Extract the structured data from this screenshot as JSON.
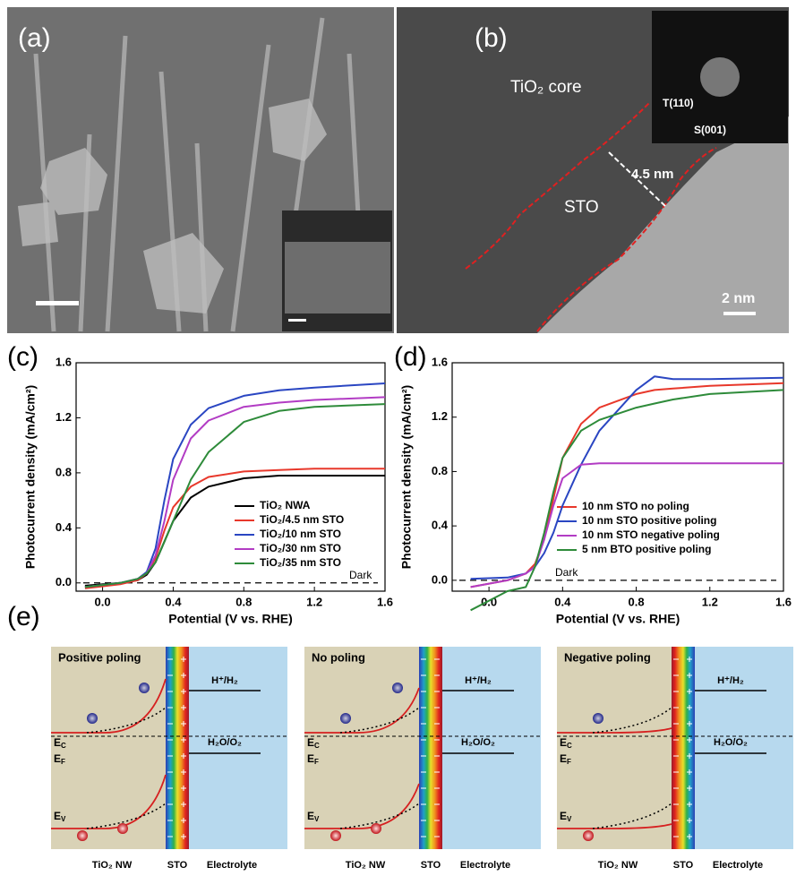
{
  "panels": {
    "a": {
      "label": "(a)"
    },
    "b": {
      "label": "(b)",
      "core_label": "TiO₂ core",
      "thickness_label": "4.5 nm",
      "shell_label": "STO",
      "fft_spot_1": "T(110)",
      "fft_spot_2": "S(001)",
      "scale_bar": "2 nm"
    },
    "e": {
      "label": "(e)",
      "diagrams": [
        {
          "title": "Positive poling",
          "ec": {
            "symbol": "E",
            "subscript": "C"
          },
          "ef": {
            "symbol": "E",
            "subscript": "F"
          },
          "ev": {
            "symbol": "E",
            "subscript": "V"
          },
          "h_level": "H⁺/H₂",
          "o_level": "H₂O/O₂",
          "left": "TiO₂ NW",
          "middle": "STO",
          "right": "Electrolyte"
        },
        {
          "title": "No poling",
          "ec": {
            "symbol": "E",
            "subscript": "C"
          },
          "ef": {
            "symbol": "E",
            "subscript": "F"
          },
          "ev": {
            "symbol": "E",
            "subscript": "V"
          },
          "h_level": "H⁺/H₂",
          "o_level": "H₂O/O₂",
          "left": "TiO₂ NW",
          "middle": "STO",
          "right": "Electrolyte"
        },
        {
          "title": "Negative poling",
          "ec": {
            "symbol": "E",
            "subscript": "C"
          },
          "ef": {
            "symbol": "E",
            "subscript": "F"
          },
          "ev": {
            "symbol": "E",
            "subscript": "V"
          },
          "h_level": "H⁺/H₂",
          "o_level": "H₂O/O₂",
          "left": "TiO₂ NW",
          "middle": "STO",
          "right": "Electrolyte"
        }
      ]
    }
  },
  "chart_data": [
    {
      "type": "line",
      "panel_label": "(c)",
      "x_label": "Potential (V vs. RHE)",
      "y_label": "Photocurrent density (mA/cm²)",
      "x": [
        -0.1,
        0.1,
        0.2,
        0.25,
        0.3,
        0.35,
        0.4,
        0.5,
        0.6,
        0.8,
        1.0,
        1.2,
        1.6
      ],
      "series": [
        {
          "name": "TiO₂ NWA",
          "color": "#000000",
          "values": [
            -0.02,
            0,
            0.02,
            0.06,
            0.15,
            0.3,
            0.45,
            0.62,
            0.7,
            0.76,
            0.78,
            0.78,
            0.78
          ]
        },
        {
          "name": "TiO₂/4.5 nm STO",
          "color": "#e8382b",
          "values": [
            -0.04,
            -0.01,
            0.02,
            0.07,
            0.18,
            0.38,
            0.55,
            0.7,
            0.77,
            0.81,
            0.82,
            0.83,
            0.83
          ]
        },
        {
          "name": "TiO₂/10 nm STO",
          "color": "#2a46c2",
          "values": [
            -0.03,
            0,
            0.03,
            0.08,
            0.25,
            0.6,
            0.9,
            1.15,
            1.27,
            1.36,
            1.4,
            1.42,
            1.45
          ]
        },
        {
          "name": "TiO₂/30 nm STO",
          "color": "#b23cc4",
          "values": [
            -0.03,
            0,
            0.03,
            0.07,
            0.2,
            0.45,
            0.75,
            1.05,
            1.18,
            1.28,
            1.31,
            1.33,
            1.35
          ]
        },
        {
          "name": "TiO₂/35 nm STO",
          "color": "#2e8b3a",
          "values": [
            -0.03,
            0,
            0.03,
            0.07,
            0.15,
            0.3,
            0.45,
            0.75,
            0.95,
            1.17,
            1.25,
            1.28,
            1.3
          ]
        }
      ],
      "reference_line": {
        "y": 0,
        "label": "Dark"
      },
      "xlim": [
        -0.15,
        1.6
      ],
      "xticks": [
        {
          "value": 0,
          "label": "0.0"
        },
        0.4,
        0.8,
        1.2,
        1.6
      ],
      "ylim": [
        -0.06,
        1.6
      ],
      "yticks": [
        {
          "value": 0,
          "label": "0.0"
        },
        0.4,
        0.8,
        1.2,
        1.6
      ],
      "legend": "lower right"
    },
    {
      "type": "line",
      "panel_label": "(d)",
      "x_label": "Potential (V vs. RHE)",
      "y_label": "Photocurrent density (mA/cm²)",
      "x": [
        -0.1,
        0.1,
        0.2,
        0.25,
        0.3,
        0.35,
        0.4,
        0.5,
        0.6,
        0.8,
        0.9,
        1.0,
        1.2,
        1.6
      ],
      "series": [
        {
          "name": "10 nm STO no poling",
          "color": "#e8382b",
          "values": [
            -0.05,
            0,
            0.05,
            0.12,
            0.3,
            0.6,
            0.9,
            1.15,
            1.27,
            1.37,
            1.4,
            1.41,
            1.43,
            1.45
          ]
        },
        {
          "name": "10 nm STO positive poling",
          "color": "#2a46c2",
          "values": [
            0.01,
            0.02,
            0.05,
            0.1,
            0.2,
            0.35,
            0.55,
            0.85,
            1.1,
            1.4,
            1.5,
            1.48,
            1.48,
            1.49
          ]
        },
        {
          "name": "10 nm STO negative poling",
          "color": "#b23cc4",
          "values": [
            -0.05,
            0,
            0.05,
            0.1,
            0.3,
            0.55,
            0.75,
            0.85,
            0.86,
            0.86,
            0.86,
            0.86,
            0.86,
            0.86
          ]
        },
        {
          "name": "5 nm BTO positive poling",
          "color": "#2e8b3a",
          "values": [
            -0.22,
            -0.08,
            -0.05,
            0.1,
            0.35,
            0.65,
            0.9,
            1.1,
            1.18,
            1.27,
            1.3,
            1.33,
            1.37,
            1.4
          ]
        }
      ],
      "reference_line": {
        "y": 0,
        "label": "Dark"
      },
      "xlim": [
        -0.2,
        1.6
      ],
      "xticks": [
        {
          "value": 0,
          "label": "0.0"
        },
        0.4,
        0.8,
        1.2,
        1.6
      ],
      "ylim": [
        -0.08,
        1.6
      ],
      "yticks": [
        {
          "value": 0,
          "label": "0.0"
        },
        0.4,
        0.8,
        1.2,
        1.6
      ],
      "legend": "lower right"
    }
  ]
}
